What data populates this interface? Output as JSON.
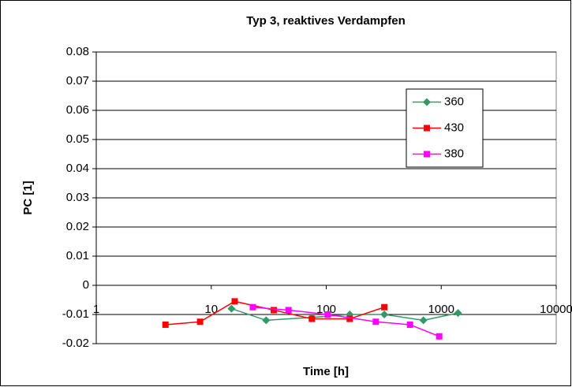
{
  "chart_data": {
    "type": "line",
    "title": "Typ 3, reaktives Verdampfen",
    "xlabel": "Time [h]",
    "ylabel": "PC [1]",
    "xscale": "log",
    "xlim": [
      1,
      10000
    ],
    "xticks": [
      1,
      10,
      100,
      1000,
      10000
    ],
    "ylim": [
      -0.02,
      0.08
    ],
    "yticks": [
      -0.02,
      -0.01,
      0,
      0.01,
      0.02,
      0.03,
      0.04,
      0.05,
      0.06,
      0.07,
      0.08
    ],
    "grid": true,
    "legend": "upper right",
    "series": [
      {
        "name": "360",
        "color": "#339966",
        "marker": "diamond",
        "x": [
          15,
          30,
          75,
          160,
          320,
          700,
          1400
        ],
        "values": [
          -0.008,
          -0.012,
          -0.011,
          -0.01,
          -0.01,
          -0.012,
          -0.0095
        ]
      },
      {
        "name": "430",
        "color": "#ff0000",
        "marker": "square",
        "x": [
          4,
          8,
          16,
          35,
          75,
          160,
          320
        ],
        "values": [
          -0.0135,
          -0.0125,
          -0.0055,
          -0.0085,
          -0.0115,
          -0.0115,
          -0.0075
        ]
      },
      {
        "name": "380",
        "color": "#ff00ff",
        "marker": "square",
        "x": [
          23,
          47,
          103,
          270,
          535,
          960
        ],
        "values": [
          -0.0075,
          -0.0085,
          -0.01,
          -0.0125,
          -0.0135,
          -0.0175
        ]
      }
    ]
  }
}
